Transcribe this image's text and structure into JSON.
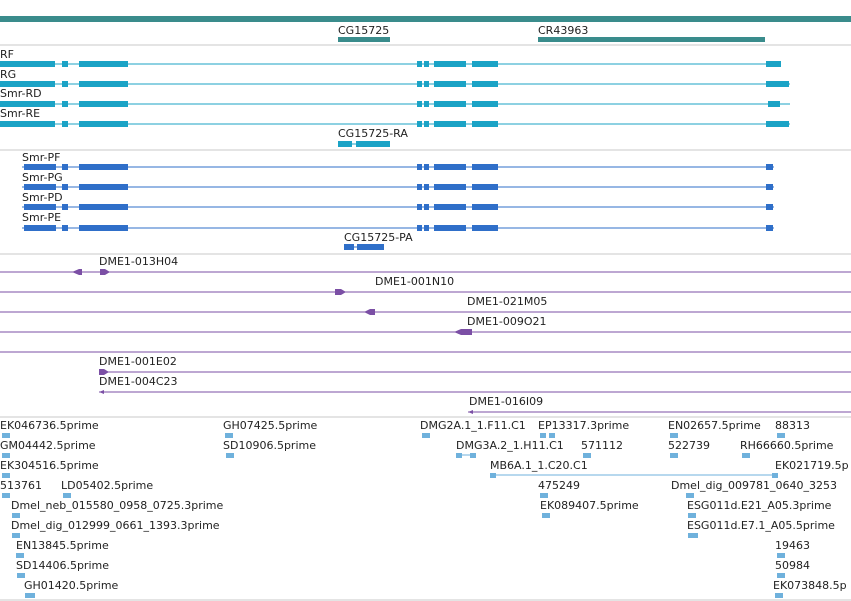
{
  "colors": {
    "gene": "#3a8c8c",
    "mrna_noncoding": "#1ba3c6",
    "mrna_coding": "#2f6fc9",
    "clone": "#7b4fa5",
    "est": "#6fb1dc",
    "separator": "#c8c8c8"
  },
  "genes": [
    {
      "label": "CG15725"
    },
    {
      "label": "CR43963"
    }
  ],
  "transcripts_a": [
    {
      "label": "RF"
    },
    {
      "label": "RG"
    },
    {
      "label": "Smr-RD"
    },
    {
      "label": "Smr-RE"
    },
    {
      "label": "CG15725-RA"
    }
  ],
  "transcripts_b": [
    {
      "label": "Smr-PF"
    },
    {
      "label": "Smr-PG"
    },
    {
      "label": "Smr-PD"
    },
    {
      "label": "Smr-PE"
    },
    {
      "label": "CG15725-PA"
    }
  ],
  "clones": [
    {
      "label": "DME1-013H04"
    },
    {
      "label": "DME1-001N10"
    },
    {
      "label": "DME1-021M05"
    },
    {
      "label": "DME1-009O21"
    },
    {
      "label": "DME1-001E02"
    },
    {
      "label": "DME1-004C23"
    },
    {
      "label": "DME1-016I09"
    }
  ],
  "ests": [
    {
      "label": "EK046736.5prime"
    },
    {
      "label": "GH07425.5prime"
    },
    {
      "label": "DMG2A.1_1.F11.C1"
    },
    {
      "label": "EP13317.3prime"
    },
    {
      "label": "EN02657.5prime"
    },
    {
      "label": "88313"
    },
    {
      "label": "GM04442.5prime"
    },
    {
      "label": "SD10906.5prime"
    },
    {
      "label": "DMG3A.2_1.H11.C1"
    },
    {
      "label": "571112"
    },
    {
      "label": "522739"
    },
    {
      "label": "RH66660.5prime"
    },
    {
      "label": "EK304516.5prime"
    },
    {
      "label": "MB6A.1_1.C20.C1"
    },
    {
      "label": "EK021719.5p"
    },
    {
      "label": "513761"
    },
    {
      "label": "LD05402.5prime"
    },
    {
      "label": "475249"
    },
    {
      "label": "Dmel_dig_009781_0640_3253"
    },
    {
      "label": "Dmel_neb_015580_0958_0725.3prime"
    },
    {
      "label": "EK089407.5prime"
    },
    {
      "label": "ESG011d.E21_A05.3prime"
    },
    {
      "label": "Dmel_dig_012999_0661_1393.3prime"
    },
    {
      "label": "ESG011d.E7.1_A05.5prime"
    },
    {
      "label": "EN13845.5prime"
    },
    {
      "label": "19463"
    },
    {
      "label": "SD14406.5prime"
    },
    {
      "label": "50984"
    },
    {
      "label": "GH01420.5prime"
    },
    {
      "label": "EK073848.5p"
    }
  ]
}
